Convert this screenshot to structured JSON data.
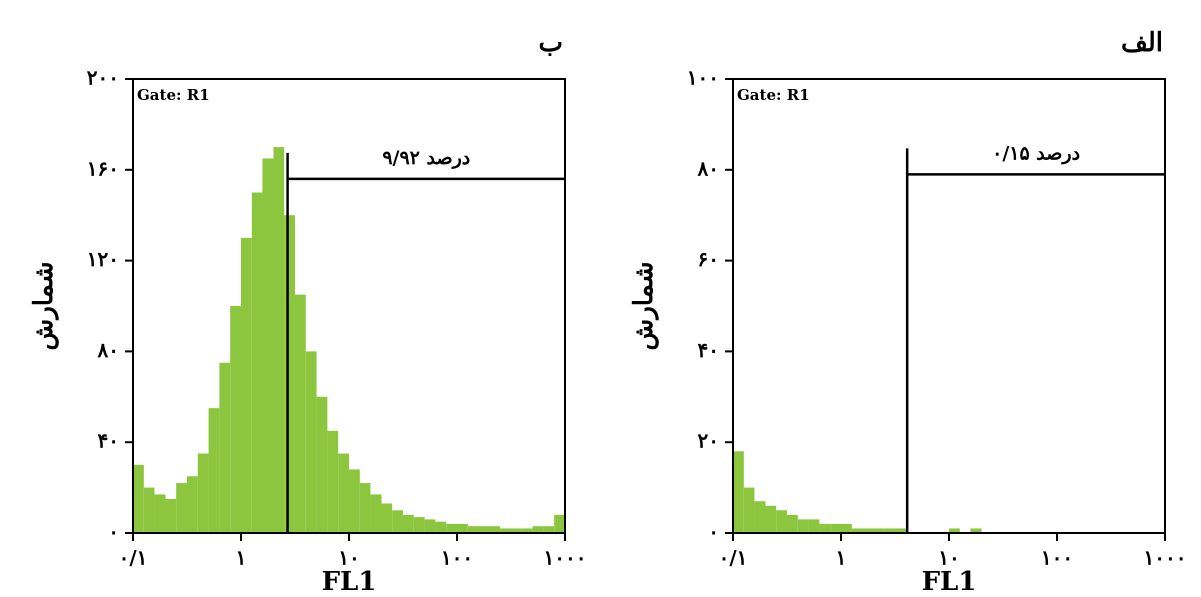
{
  "chart_data": [
    {
      "type": "histogram",
      "title": "ب",
      "xlabel": "FL1",
      "ylabel": "شمارش",
      "annotation": "Gate: R1",
      "xscale": "log",
      "color": "#8cc63f",
      "bins": [
        0.1,
        0.126,
        0.158,
        0.2,
        0.251,
        0.316,
        0.398,
        0.501,
        0.631,
        0.794,
        1,
        1.26,
        1.58,
        2,
        2.51,
        3.16,
        3.98,
        5.01,
        6.31,
        7.94,
        10,
        12.6,
        15.8,
        20,
        25.1,
        31.6,
        39.8,
        50.1,
        63.1,
        79.4,
        100,
        126,
        158,
        200,
        251,
        316,
        398,
        501,
        631,
        794,
        1000
      ],
      "values": [
        30,
        20,
        17,
        15,
        22,
        25,
        35,
        55,
        75,
        100,
        130,
        150,
        165,
        170,
        140,
        105,
        80,
        60,
        45,
        35,
        28,
        22,
        17,
        13,
        10,
        8,
        7,
        6,
        5,
        4,
        4,
        3,
        3,
        3,
        2,
        2,
        2,
        3,
        3,
        8
      ],
      "xlim": [
        0.1,
        1000
      ],
      "xticks": [
        {
          "value": 0.1,
          "label": "۰/۱"
        },
        {
          "value": 1,
          "label": "۱"
        },
        {
          "value": 10,
          "label": "۱۰"
        },
        {
          "value": 100,
          "label": "۱۰۰"
        },
        {
          "value": 1000,
          "label": "۱۰۰۰"
        }
      ],
      "ylim": [
        0,
        200
      ],
      "yticks": [
        {
          "value": 0,
          "label": "۰"
        },
        {
          "value": 40,
          "label": "۴۰"
        },
        {
          "value": 80,
          "label": "۸۰"
        },
        {
          "value": 120,
          "label": "۱۲۰"
        },
        {
          "value": 160,
          "label": "۱۶۰"
        },
        {
          "value": 200,
          "label": "۲۰۰"
        }
      ],
      "gate": {
        "from": 2.7,
        "to": 1000,
        "height": 156,
        "label": "۹/۹۲ درصد"
      }
    },
    {
      "type": "histogram",
      "title": "الف",
      "xlabel": "FL1",
      "ylabel": "شمارش",
      "annotation": "Gate: R1",
      "xscale": "log",
      "color": "#8cc63f",
      "bins": [
        0.1,
        0.126,
        0.158,
        0.2,
        0.251,
        0.316,
        0.398,
        0.501,
        0.631,
        0.794,
        1,
        1.26,
        1.58,
        2,
        2.51,
        3.16,
        3.98,
        5.01,
        6.31,
        7.94,
        10,
        12.6,
        15.8,
        20,
        25.1,
        31.6,
        39.8,
        50.1,
        63.1,
        79.4,
        100,
        126,
        158,
        200,
        251,
        316,
        398,
        501,
        631,
        794,
        1000
      ],
      "values": [
        18,
        10,
        7,
        6,
        5,
        4,
        3,
        3,
        2,
        2,
        2,
        1,
        1,
        1,
        1,
        1,
        0,
        0,
        0,
        0,
        1,
        0,
        1,
        0,
        0,
        0,
        0,
        0,
        0,
        0,
        0,
        0,
        0,
        0,
        0,
        0,
        0,
        0,
        0,
        0
      ],
      "xlim": [
        0.1,
        1000
      ],
      "xticks": [
        {
          "value": 0.1,
          "label": "۰/۱"
        },
        {
          "value": 1,
          "label": "۱"
        },
        {
          "value": 10,
          "label": "۱۰"
        },
        {
          "value": 100,
          "label": "۱۰۰"
        },
        {
          "value": 1000,
          "label": "۱۰۰۰"
        }
      ],
      "ylim": [
        0,
        100
      ],
      "yticks": [
        {
          "value": 0,
          "label": "۰"
        },
        {
          "value": 20,
          "label": "۲۰"
        },
        {
          "value": 40,
          "label": "۴۰"
        },
        {
          "value": 60,
          "label": "۶۰"
        },
        {
          "value": 80,
          "label": "۸۰"
        },
        {
          "value": 100,
          "label": "۱۰۰"
        }
      ],
      "gate": {
        "from": 4.1,
        "to": 1000,
        "height": 79,
        "label": "۰/۱۵ درصد"
      }
    }
  ]
}
